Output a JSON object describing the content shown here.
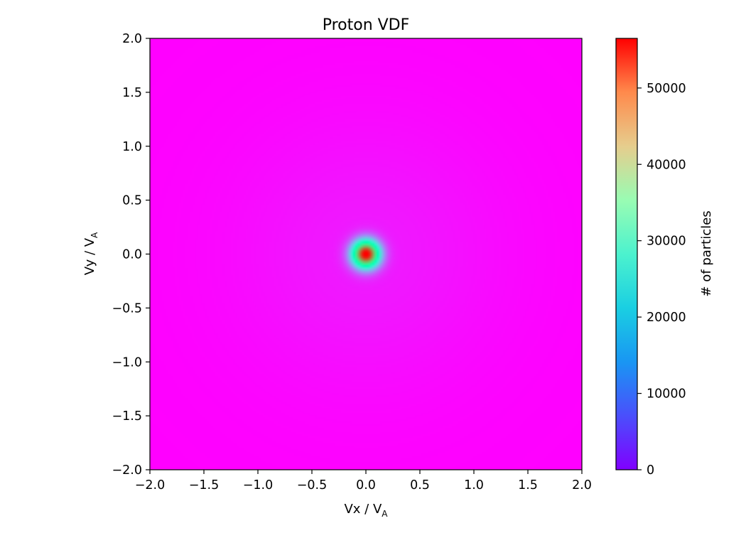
{
  "chart_data": {
    "type": "heatmap",
    "title": "Proton VDF",
    "xlabel": {
      "main": "Vx / V",
      "subscript": "A"
    },
    "ylabel": {
      "main": "Vy / V",
      "subscript": "A"
    },
    "xlim": [
      -2.0,
      2.0
    ],
    "ylim": [
      -2.0,
      2.0
    ],
    "x_ticks": [
      "−2.0",
      "−1.5",
      "−1.0",
      "−0.5",
      "0.0",
      "0.5",
      "1.0",
      "1.5",
      "2.0"
    ],
    "x_tick_values": [
      -2.0,
      -1.5,
      -1.0,
      -0.5,
      0.0,
      0.5,
      1.0,
      1.5,
      2.0
    ],
    "y_ticks": [
      "−2.0",
      "−1.5",
      "−1.0",
      "−0.5",
      "0.0",
      "0.5",
      "1.0",
      "1.5",
      "2.0"
    ],
    "y_tick_values": [
      -2.0,
      -1.5,
      -1.0,
      -0.5,
      0.0,
      0.5,
      1.0,
      1.5,
      2.0
    ],
    "colormap": "rainbow",
    "grid": false,
    "distribution": {
      "shape": "isotropic gaussian core",
      "center": [
        0.0,
        0.0
      ],
      "peak_value": 56000,
      "core_sigma": 0.09,
      "halo_value": 1800,
      "halo_sigma": 0.9
    },
    "colorbar": {
      "label": "# of particles",
      "range": [
        0,
        56500
      ],
      "ticks": [
        "0",
        "10000",
        "20000",
        "30000",
        "40000",
        "50000"
      ],
      "tick_values": [
        0,
        10000,
        20000,
        30000,
        40000,
        50000
      ]
    }
  }
}
